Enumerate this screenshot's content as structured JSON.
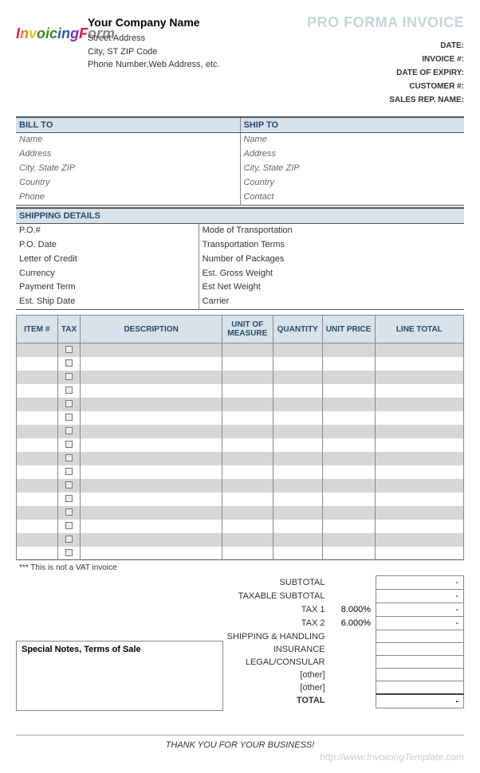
{
  "logo": {
    "text": "InvoicingForm"
  },
  "company": {
    "name": "Your Company Name",
    "lines": [
      "Street Address",
      "City, ST  ZIP Code",
      "Phone Number,Web Address, etc."
    ]
  },
  "doc_title": "PRO FORMA INVOICE",
  "meta_labels": [
    "DATE:",
    "INVOICE #:",
    "DATE OF EXPIRY:",
    "CUSTOMER #:",
    "SALES REP. NAME:"
  ],
  "bill_to": {
    "header": "BILL TO",
    "lines": [
      "Name",
      "Address",
      "City, State ZIP",
      "Country",
      "Phone"
    ]
  },
  "ship_to": {
    "header": "SHIP TO",
    "lines": [
      "Name",
      "Address",
      "City, State ZIP",
      "Country",
      "Contact"
    ]
  },
  "shipping": {
    "header": "SHIPPING DETAILS",
    "left": [
      "P.O.#",
      "P.O. Date",
      "Letter of Credit",
      "Currency",
      "Payment Term",
      "Est. Ship Date"
    ],
    "right": [
      "Mode of Transportation",
      "Transportation Terms",
      "Number of Packages",
      "Est. Gross Weight",
      "Est Net Weight",
      "Carrier"
    ]
  },
  "items_table": {
    "columns": [
      "ITEM #",
      "TAX",
      "DESCRIPTION",
      "UNIT OF MEASURE",
      "QUANTITY",
      "UNIT PRICE",
      "LINE TOTAL"
    ],
    "row_count": 16
  },
  "vat_note": "*** This is not a VAT invoice",
  "totals": {
    "rows": [
      {
        "label": "SUBTOTAL",
        "pct": "",
        "value": "-"
      },
      {
        "label": "TAXABLE SUBTOTAL",
        "pct": "",
        "value": "-"
      },
      {
        "label": "TAX 1",
        "pct": "8.000%",
        "value": "-"
      },
      {
        "label": "TAX 2",
        "pct": "6.000%",
        "value": "-"
      },
      {
        "label": "SHIPPING & HANDLING",
        "pct": "",
        "value": ""
      },
      {
        "label": "INSURANCE",
        "pct": "",
        "value": ""
      },
      {
        "label": "LEGAL/CONSULAR",
        "pct": "",
        "value": ""
      },
      {
        "label": "[other]",
        "pct": "",
        "value": ""
      },
      {
        "label": "[other]",
        "pct": "",
        "value": ""
      }
    ],
    "total_label": "TOTAL",
    "total_value": "-"
  },
  "notes_header": "Special Notes, Terms of Sale",
  "thank_you": "THANK YOU FOR YOUR BUSINESS!",
  "watermark": "http://www.InvoicingTemplate.com"
}
